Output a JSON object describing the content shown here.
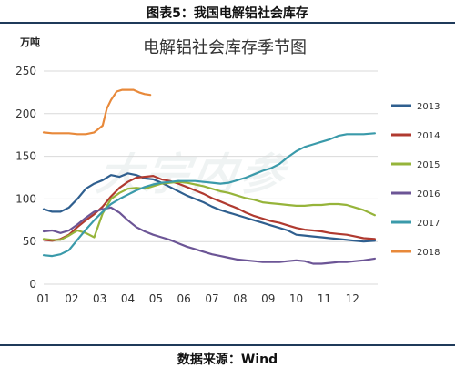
{
  "figure_caption": "图表5：我国电解铝社会库存",
  "source_note": "数据来源：Wind",
  "watermark_text": "大宗内参",
  "chart_data": {
    "type": "line",
    "title": "电解铝社会库存季节图",
    "unit_label": "万吨",
    "ylim": [
      0,
      250
    ],
    "yticks": [
      0,
      50,
      100,
      150,
      200,
      250
    ],
    "x_categories": [
      "01",
      "02",
      "03",
      "04",
      "05",
      "06",
      "07",
      "08",
      "09",
      "10",
      "11",
      "12"
    ],
    "grid": "horizontal",
    "legend_position": "right",
    "series": [
      {
        "name": "2013",
        "color": "#2f5f8f",
        "values": [
          [
            1.0,
            88
          ],
          [
            1.3,
            85
          ],
          [
            1.6,
            85
          ],
          [
            1.9,
            90
          ],
          [
            2.2,
            100
          ],
          [
            2.5,
            112
          ],
          [
            2.8,
            118
          ],
          [
            3.1,
            122
          ],
          [
            3.4,
            128
          ],
          [
            3.7,
            126
          ],
          [
            4.0,
            130
          ],
          [
            4.3,
            128
          ],
          [
            4.6,
            124
          ],
          [
            4.9,
            123
          ],
          [
            5.2,
            119
          ],
          [
            5.5,
            114
          ],
          [
            5.8,
            109
          ],
          [
            6.1,
            104
          ],
          [
            6.4,
            100
          ],
          [
            6.7,
            96
          ],
          [
            7.0,
            91
          ],
          [
            7.3,
            87
          ],
          [
            7.6,
            84
          ],
          [
            7.9,
            81
          ],
          [
            8.2,
            78
          ],
          [
            8.5,
            75
          ],
          [
            8.8,
            72
          ],
          [
            9.1,
            69
          ],
          [
            9.4,
            66
          ],
          [
            9.7,
            63
          ],
          [
            10.0,
            58
          ],
          [
            10.3,
            57
          ],
          [
            10.6,
            56
          ],
          [
            10.9,
            55
          ],
          [
            11.2,
            54
          ],
          [
            11.5,
            53
          ],
          [
            11.8,
            52
          ],
          [
            12.1,
            51
          ],
          [
            12.4,
            50
          ],
          [
            12.8,
            51
          ]
        ]
      },
      {
        "name": "2014",
        "color": "#b03a30",
        "values": [
          [
            1.0,
            52
          ],
          [
            1.3,
            51
          ],
          [
            1.6,
            53
          ],
          [
            1.9,
            58
          ],
          [
            2.2,
            67
          ],
          [
            2.5,
            75
          ],
          [
            2.8,
            82
          ],
          [
            3.1,
            91
          ],
          [
            3.4,
            103
          ],
          [
            3.7,
            113
          ],
          [
            4.0,
            120
          ],
          [
            4.3,
            125
          ],
          [
            4.6,
            126
          ],
          [
            4.9,
            127
          ],
          [
            5.2,
            123
          ],
          [
            5.5,
            121
          ],
          [
            5.8,
            118
          ],
          [
            6.1,
            114
          ],
          [
            6.4,
            110
          ],
          [
            6.7,
            106
          ],
          [
            7.0,
            101
          ],
          [
            7.3,
            97
          ],
          [
            7.6,
            93
          ],
          [
            7.9,
            89
          ],
          [
            8.2,
            84
          ],
          [
            8.5,
            80
          ],
          [
            8.8,
            77
          ],
          [
            9.1,
            74
          ],
          [
            9.4,
            72
          ],
          [
            9.7,
            69
          ],
          [
            10.0,
            66
          ],
          [
            10.3,
            64
          ],
          [
            10.6,
            63
          ],
          [
            10.9,
            62
          ],
          [
            11.2,
            60
          ],
          [
            11.5,
            59
          ],
          [
            11.8,
            58
          ],
          [
            12.1,
            56
          ],
          [
            12.4,
            54
          ],
          [
            12.8,
            53
          ]
        ]
      },
      {
        "name": "2015",
        "color": "#96b43a",
        "values": [
          [
            1.0,
            53
          ],
          [
            1.3,
            52
          ],
          [
            1.6,
            52
          ],
          [
            1.9,
            57
          ],
          [
            2.2,
            63
          ],
          [
            2.5,
            60
          ],
          [
            2.8,
            55
          ],
          [
            3.1,
            83
          ],
          [
            3.4,
            100
          ],
          [
            3.7,
            107
          ],
          [
            4.0,
            112
          ],
          [
            4.3,
            113
          ],
          [
            4.6,
            112
          ],
          [
            4.9,
            115
          ],
          [
            5.2,
            118
          ],
          [
            5.5,
            119
          ],
          [
            5.8,
            120
          ],
          [
            6.1,
            119
          ],
          [
            6.4,
            117
          ],
          [
            6.7,
            115
          ],
          [
            7.0,
            112
          ],
          [
            7.3,
            109
          ],
          [
            7.6,
            107
          ],
          [
            7.9,
            104
          ],
          [
            8.2,
            101
          ],
          [
            8.5,
            99
          ],
          [
            8.8,
            96
          ],
          [
            9.1,
            95
          ],
          [
            9.4,
            94
          ],
          [
            9.7,
            93
          ],
          [
            10.0,
            92
          ],
          [
            10.3,
            92
          ],
          [
            10.6,
            93
          ],
          [
            10.9,
            93
          ],
          [
            11.2,
            94
          ],
          [
            11.5,
            94
          ],
          [
            11.8,
            93
          ],
          [
            12.1,
            90
          ],
          [
            12.4,
            87
          ],
          [
            12.8,
            81
          ]
        ]
      },
      {
        "name": "2016",
        "color": "#6c5596",
        "values": [
          [
            1.0,
            62
          ],
          [
            1.3,
            63
          ],
          [
            1.6,
            60
          ],
          [
            1.9,
            63
          ],
          [
            2.2,
            70
          ],
          [
            2.5,
            78
          ],
          [
            2.8,
            85
          ],
          [
            3.1,
            88
          ],
          [
            3.4,
            90
          ],
          [
            3.7,
            84
          ],
          [
            4.0,
            75
          ],
          [
            4.3,
            67
          ],
          [
            4.6,
            62
          ],
          [
            4.9,
            58
          ],
          [
            5.2,
            55
          ],
          [
            5.5,
            52
          ],
          [
            5.8,
            48
          ],
          [
            6.1,
            44
          ],
          [
            6.4,
            41
          ],
          [
            6.7,
            38
          ],
          [
            7.0,
            35
          ],
          [
            7.3,
            33
          ],
          [
            7.6,
            31
          ],
          [
            7.9,
            29
          ],
          [
            8.2,
            28
          ],
          [
            8.5,
            27
          ],
          [
            8.8,
            26
          ],
          [
            9.1,
            26
          ],
          [
            9.4,
            26
          ],
          [
            9.7,
            27
          ],
          [
            10.0,
            28
          ],
          [
            10.3,
            27
          ],
          [
            10.6,
            24
          ],
          [
            10.9,
            24
          ],
          [
            11.2,
            25
          ],
          [
            11.5,
            26
          ],
          [
            11.8,
            26
          ],
          [
            12.1,
            27
          ],
          [
            12.4,
            28
          ],
          [
            12.8,
            30
          ]
        ]
      },
      {
        "name": "2017",
        "color": "#3a9aaa",
        "values": [
          [
            1.0,
            34
          ],
          [
            1.3,
            33
          ],
          [
            1.6,
            35
          ],
          [
            1.9,
            40
          ],
          [
            2.2,
            52
          ],
          [
            2.5,
            64
          ],
          [
            2.8,
            75
          ],
          [
            3.1,
            85
          ],
          [
            3.4,
            94
          ],
          [
            3.7,
            100
          ],
          [
            4.0,
            105
          ],
          [
            4.3,
            110
          ],
          [
            4.6,
            114
          ],
          [
            4.9,
            117
          ],
          [
            5.2,
            119
          ],
          [
            5.5,
            120
          ],
          [
            5.8,
            121
          ],
          [
            6.1,
            121
          ],
          [
            6.4,
            121
          ],
          [
            6.7,
            120
          ],
          [
            7.0,
            119
          ],
          [
            7.3,
            118
          ],
          [
            7.6,
            119
          ],
          [
            7.9,
            122
          ],
          [
            8.2,
            125
          ],
          [
            8.5,
            129
          ],
          [
            8.8,
            133
          ],
          [
            9.1,
            136
          ],
          [
            9.4,
            141
          ],
          [
            9.7,
            149
          ],
          [
            10.0,
            156
          ],
          [
            10.3,
            161
          ],
          [
            10.6,
            164
          ],
          [
            10.9,
            167
          ],
          [
            11.2,
            170
          ],
          [
            11.5,
            174
          ],
          [
            11.8,
            176
          ],
          [
            12.1,
            176
          ],
          [
            12.4,
            176
          ],
          [
            12.8,
            177
          ]
        ]
      },
      {
        "name": "2018",
        "color": "#e8893a",
        "values": [
          [
            1.0,
            178
          ],
          [
            1.3,
            177
          ],
          [
            1.6,
            177
          ],
          [
            1.9,
            177
          ],
          [
            2.2,
            176
          ],
          [
            2.5,
            176
          ],
          [
            2.8,
            178
          ],
          [
            3.1,
            186
          ],
          [
            3.25,
            206
          ],
          [
            3.4,
            216
          ],
          [
            3.6,
            226
          ],
          [
            3.8,
            228
          ],
          [
            4.0,
            228
          ],
          [
            4.2,
            228
          ],
          [
            4.4,
            225
          ],
          [
            4.6,
            223
          ],
          [
            4.8,
            222
          ]
        ]
      }
    ]
  }
}
